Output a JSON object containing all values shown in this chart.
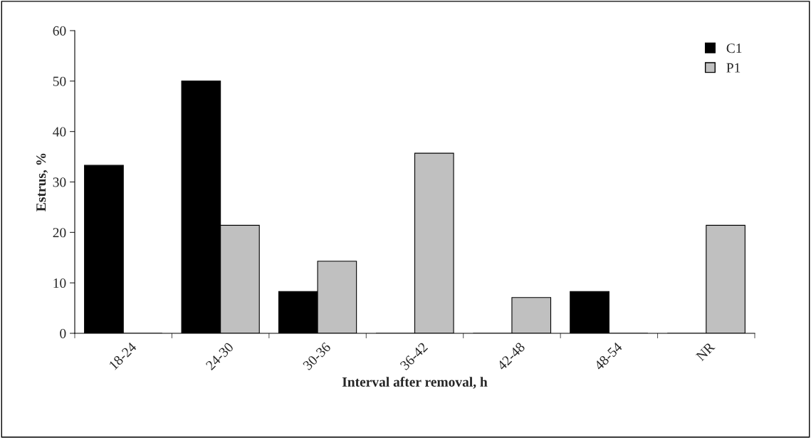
{
  "chart_data": {
    "type": "bar",
    "xlabel": "Interval after removal, h",
    "ylabel": "Estrus, %",
    "categories": [
      "18-24",
      "24-30",
      "30-36",
      "36-42",
      "42-48",
      "48-54",
      "NR"
    ],
    "series": [
      {
        "name": "C1",
        "color": "#000000",
        "values": [
          33.3,
          50,
          8.3,
          0,
          0,
          8.3,
          0
        ]
      },
      {
        "name": "P1",
        "color": "#c0c0c0",
        "values": [
          0,
          21.4,
          14.3,
          35.7,
          7.1,
          0,
          21.4
        ]
      }
    ],
    "ylim": [
      0,
      60
    ],
    "yticks": [
      0,
      10,
      20,
      30,
      40,
      50,
      60
    ],
    "grid": false,
    "legend": "top right"
  }
}
